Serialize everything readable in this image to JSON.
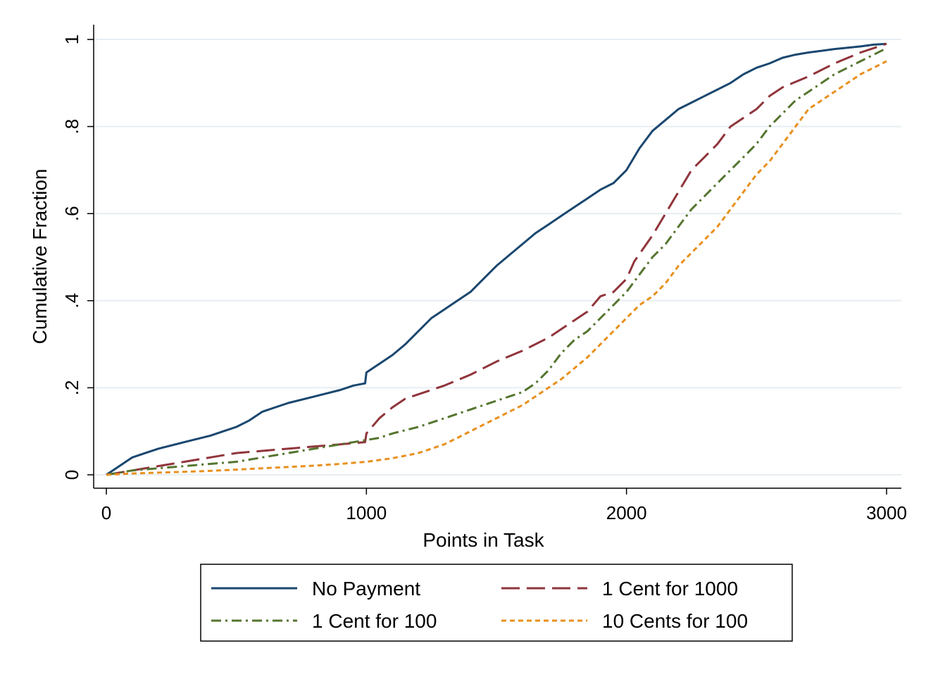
{
  "chart_data": {
    "type": "line",
    "title": "",
    "xlabel": "Points in Task",
    "ylabel": "Cumulative Fraction",
    "xlim": [
      0,
      3000
    ],
    "ylim": [
      0,
      1
    ],
    "xticks": [
      0,
      1000,
      2000,
      3000
    ],
    "xtick_labels": [
      "0",
      "1000",
      "2000",
      "3000"
    ],
    "yticks": [
      0,
      0.2,
      0.4,
      0.6,
      0.8,
      1
    ],
    "ytick_labels": [
      "0",
      ".2",
      ".4",
      ".6",
      ".8",
      "1"
    ],
    "grid": "horizontal",
    "legend_position": "bottom",
    "series": [
      {
        "name": "No Payment",
        "color": "#1a476f",
        "dash": "solid",
        "x": [
          0,
          50,
          100,
          150,
          200,
          300,
          400,
          450,
          500,
          550,
          600,
          700,
          800,
          900,
          950,
          995,
          1000,
          1050,
          1100,
          1150,
          1200,
          1250,
          1300,
          1350,
          1400,
          1450,
          1500,
          1550,
          1600,
          1650,
          1700,
          1750,
          1800,
          1850,
          1900,
          1950,
          2000,
          2050,
          2100,
          2150,
          2200,
          2250,
          2300,
          2350,
          2400,
          2450,
          2500,
          2550,
          2600,
          2650,
          2700,
          2750,
          2800,
          2850,
          2900,
          2950,
          3000
        ],
        "values": [
          0.0,
          0.02,
          0.04,
          0.05,
          0.06,
          0.075,
          0.09,
          0.1,
          0.11,
          0.125,
          0.145,
          0.165,
          0.18,
          0.195,
          0.205,
          0.21,
          0.235,
          0.255,
          0.275,
          0.3,
          0.33,
          0.36,
          0.38,
          0.4,
          0.42,
          0.45,
          0.48,
          0.505,
          0.53,
          0.555,
          0.575,
          0.595,
          0.615,
          0.635,
          0.655,
          0.67,
          0.7,
          0.75,
          0.79,
          0.815,
          0.84,
          0.855,
          0.87,
          0.885,
          0.9,
          0.92,
          0.935,
          0.945,
          0.958,
          0.965,
          0.97,
          0.974,
          0.978,
          0.981,
          0.984,
          0.988,
          0.99
        ]
      },
      {
        "name": "1 Cent for 1000",
        "color": "#90353b",
        "dash": "long-dash",
        "x": [
          0,
          100,
          200,
          300,
          400,
          500,
          600,
          700,
          800,
          900,
          995,
          1000,
          1050,
          1100,
          1150,
          1200,
          1300,
          1400,
          1500,
          1600,
          1700,
          1800,
          1850,
          1900,
          1950,
          2000,
          2030,
          2100,
          2150,
          2200,
          2250,
          2300,
          2350,
          2400,
          2450,
          2500,
          2550,
          2600,
          2700,
          2800,
          2900,
          3000
        ],
        "values": [
          0.0,
          0.01,
          0.02,
          0.03,
          0.04,
          0.05,
          0.055,
          0.06,
          0.065,
          0.07,
          0.075,
          0.095,
          0.13,
          0.155,
          0.175,
          0.185,
          0.205,
          0.23,
          0.26,
          0.285,
          0.315,
          0.355,
          0.375,
          0.41,
          0.42,
          0.45,
          0.49,
          0.55,
          0.6,
          0.65,
          0.7,
          0.73,
          0.76,
          0.8,
          0.82,
          0.84,
          0.87,
          0.89,
          0.915,
          0.945,
          0.97,
          0.99
        ]
      },
      {
        "name": "1 Cent for 100",
        "color": "#55752f",
        "dash": "dash-dot",
        "x": [
          0,
          100,
          200,
          300,
          400,
          500,
          600,
          700,
          800,
          900,
          1000,
          1050,
          1100,
          1200,
          1300,
          1400,
          1500,
          1600,
          1650,
          1700,
          1750,
          1800,
          1850,
          1900,
          1950,
          2000,
          2050,
          2100,
          2150,
          2200,
          2250,
          2300,
          2350,
          2400,
          2450,
          2500,
          2550,
          2600,
          2650,
          2700,
          2800,
          2900,
          3000
        ],
        "values": [
          0.0,
          0.01,
          0.015,
          0.02,
          0.025,
          0.03,
          0.04,
          0.05,
          0.06,
          0.07,
          0.08,
          0.085,
          0.095,
          0.11,
          0.13,
          0.15,
          0.17,
          0.19,
          0.21,
          0.24,
          0.28,
          0.31,
          0.33,
          0.36,
          0.39,
          0.42,
          0.46,
          0.5,
          0.53,
          0.57,
          0.61,
          0.64,
          0.67,
          0.7,
          0.73,
          0.76,
          0.8,
          0.83,
          0.86,
          0.88,
          0.92,
          0.95,
          0.98
        ]
      },
      {
        "name": "10 Cents for 100",
        "color": "#e8901e",
        "dash": "short-dash",
        "x": [
          0,
          100,
          200,
          300,
          400,
          500,
          600,
          700,
          800,
          900,
          1000,
          1100,
          1200,
          1300,
          1350,
          1400,
          1450,
          1500,
          1550,
          1600,
          1650,
          1700,
          1750,
          1800,
          1850,
          1900,
          1950,
          2000,
          2050,
          2100,
          2150,
          2200,
          2250,
          2300,
          2350,
          2400,
          2450,
          2500,
          2550,
          2600,
          2650,
          2700,
          2800,
          2900,
          3000
        ],
        "values": [
          0.0,
          0.003,
          0.005,
          0.007,
          0.009,
          0.012,
          0.015,
          0.018,
          0.021,
          0.025,
          0.03,
          0.038,
          0.05,
          0.07,
          0.085,
          0.1,
          0.115,
          0.13,
          0.145,
          0.16,
          0.18,
          0.2,
          0.22,
          0.245,
          0.27,
          0.3,
          0.33,
          0.36,
          0.39,
          0.41,
          0.44,
          0.48,
          0.51,
          0.54,
          0.57,
          0.61,
          0.65,
          0.69,
          0.72,
          0.76,
          0.8,
          0.84,
          0.88,
          0.92,
          0.95
        ]
      }
    ]
  }
}
